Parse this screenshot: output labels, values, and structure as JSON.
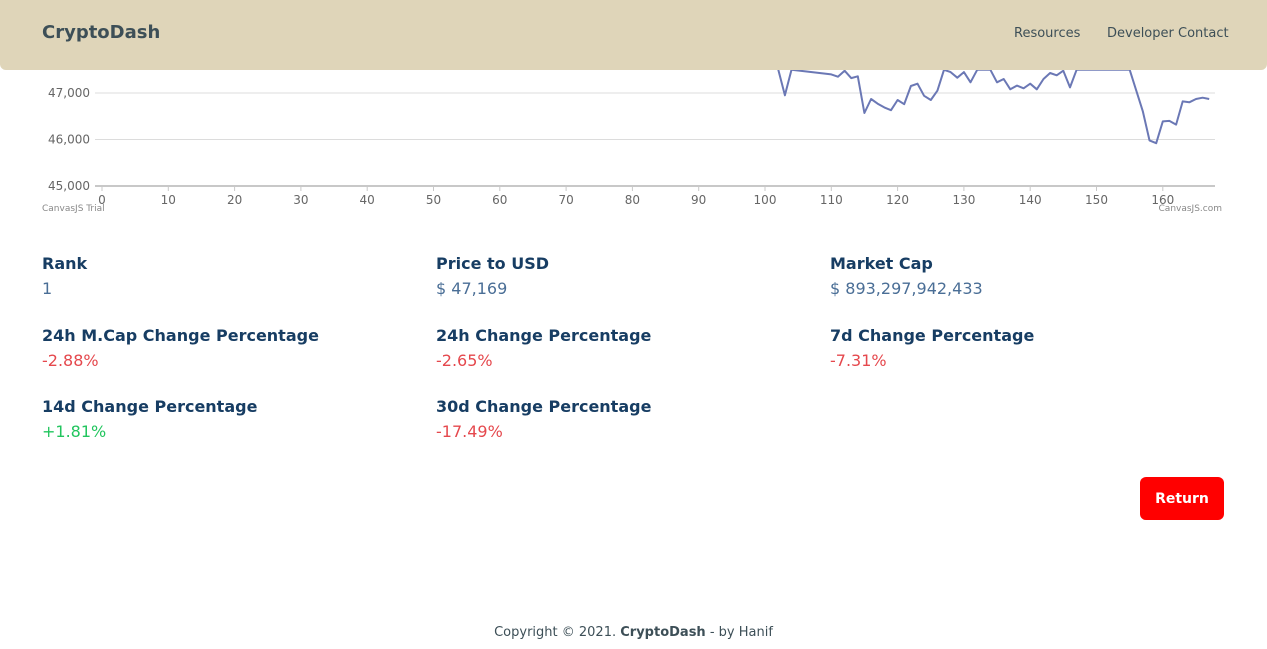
{
  "navbar": {
    "brand": "CryptoDash",
    "links": [
      "Resources",
      "Developer Contact"
    ]
  },
  "chart_watermarks": {
    "left": "CanvasJS Trial",
    "right": "CanvasJS.com"
  },
  "chart_data": {
    "type": "line",
    "title": "",
    "xlabel": "",
    "ylabel": "",
    "xlim": [
      0,
      168
    ],
    "ylim_visible": [
      45000,
      47400
    ],
    "y_ticks": [
      45000,
      46000,
      47000
    ],
    "x_ticks": [
      0,
      10,
      20,
      30,
      40,
      50,
      60,
      70,
      80,
      90,
      100,
      110,
      120,
      130,
      140,
      150,
      160
    ],
    "grid": true,
    "color": "#6b78b5",
    "series": [
      {
        "points": [
          [
            102,
            47500
          ],
          [
            103,
            46950
          ],
          [
            104,
            47500
          ],
          [
            110,
            47400
          ],
          [
            111,
            47350
          ],
          [
            112,
            47480
          ],
          [
            113,
            47320
          ],
          [
            114,
            47360
          ],
          [
            115,
            46570
          ],
          [
            116,
            46870
          ],
          [
            117,
            46770
          ],
          [
            118,
            46690
          ],
          [
            119,
            46630
          ],
          [
            120,
            46850
          ],
          [
            121,
            46760
          ],
          [
            122,
            47150
          ],
          [
            123,
            47200
          ],
          [
            124,
            46940
          ],
          [
            125,
            46850
          ],
          [
            126,
            47050
          ],
          [
            127,
            47500
          ],
          [
            128,
            47450
          ],
          [
            129,
            47330
          ],
          [
            130,
            47450
          ],
          [
            131,
            47230
          ],
          [
            132,
            47500
          ],
          [
            134,
            47500
          ],
          [
            135,
            47230
          ],
          [
            136,
            47300
          ],
          [
            137,
            47080
          ],
          [
            138,
            47160
          ],
          [
            139,
            47100
          ],
          [
            140,
            47200
          ],
          [
            141,
            47080
          ],
          [
            142,
            47300
          ],
          [
            143,
            47430
          ],
          [
            144,
            47380
          ],
          [
            145,
            47480
          ],
          [
            146,
            47120
          ],
          [
            147,
            47500
          ],
          [
            155,
            47500
          ],
          [
            156,
            47050
          ],
          [
            157,
            46600
          ],
          [
            158,
            45980
          ],
          [
            159,
            45920
          ],
          [
            160,
            46390
          ],
          [
            161,
            46400
          ],
          [
            162,
            46320
          ],
          [
            163,
            46820
          ],
          [
            164,
            46800
          ],
          [
            165,
            46870
          ],
          [
            166,
            46900
          ],
          [
            167,
            46870
          ]
        ]
      }
    ]
  },
  "stats": [
    {
      "label": "Rank",
      "value": "1",
      "color": "#4a6e96"
    },
    {
      "label": "Price to USD",
      "value": "$ 47,169",
      "color": "#4a6e96"
    },
    {
      "label": "Market Cap",
      "value": "$ 893,297,942,433",
      "color": "#4a6e96"
    },
    {
      "label": "24h M.Cap Change Percentage",
      "value": "-2.88%",
      "color": "#e5484d"
    },
    {
      "label": "24h Change Percentage",
      "value": "-2.65%",
      "color": "#e5484d"
    },
    {
      "label": "7d Change Percentage",
      "value": "-7.31%",
      "color": "#e5484d"
    },
    {
      "label": "14d Change Percentage",
      "value": "+1.81%",
      "color": "#22c55e"
    },
    {
      "label": "30d Change Percentage",
      "value": "-17.49%",
      "color": "#e5484d"
    }
  ],
  "return_label": "Return",
  "footer": {
    "prefix": "Copyright © 2021. ",
    "brand": "CryptoDash",
    "suffix": " - by Hanif"
  }
}
